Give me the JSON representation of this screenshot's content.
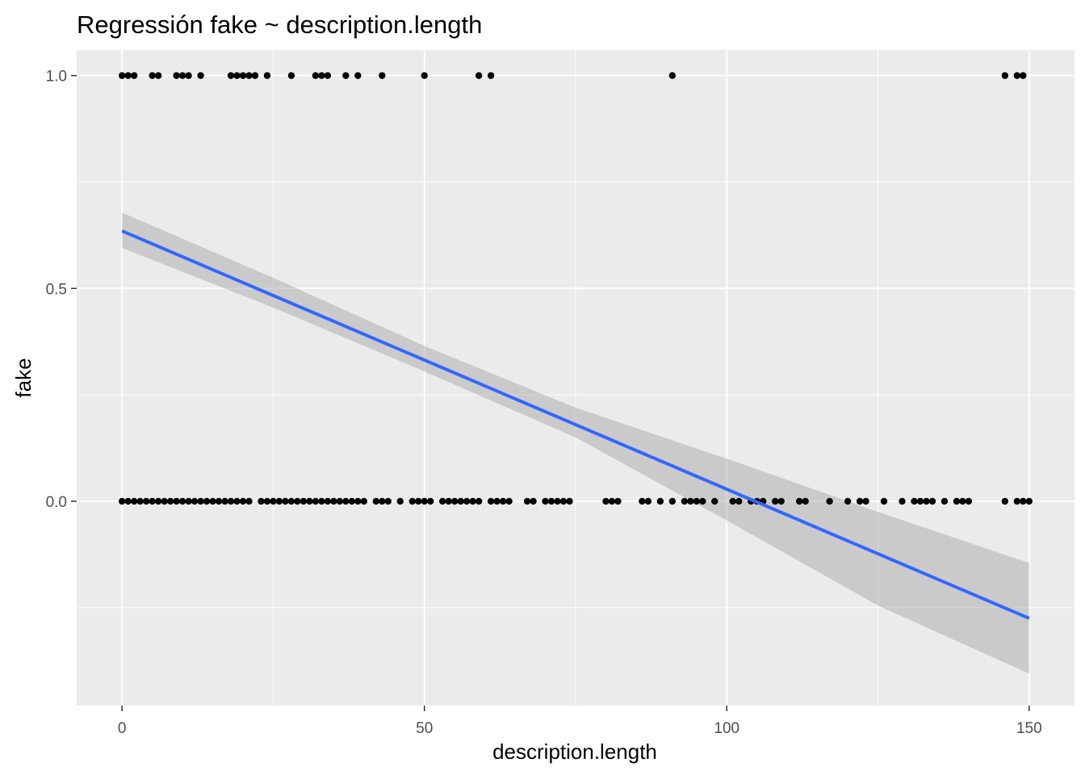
{
  "chart_data": {
    "type": "scatter",
    "title": "Regressión fake ~ description.length",
    "xlabel": "description.length",
    "ylabel": "fake",
    "xlim": [
      -7.5,
      157.5
    ],
    "ylim": [
      -0.48,
      1.06
    ],
    "x_ticks": [
      0,
      50,
      100,
      150
    ],
    "x_tick_labels": [
      "0",
      "50",
      "100",
      "150"
    ],
    "y_ticks": [
      0.0,
      0.5,
      1.0
    ],
    "y_tick_labels": [
      "0.0",
      "0.5",
      "1.0"
    ],
    "grid": true,
    "background_color": "#ebebeb",
    "point_color": "#000000",
    "line_color": "#3366ff",
    "band_color": "#999999",
    "points_y1": [
      0,
      1,
      2,
      5,
      6,
      9,
      10,
      11,
      13,
      18,
      19,
      20,
      21,
      22,
      24,
      28,
      32,
      33,
      34,
      37,
      39,
      43,
      50,
      59,
      61,
      91,
      146,
      148,
      149
    ],
    "points_y0": [
      0,
      1,
      2,
      3,
      4,
      5,
      6,
      7,
      8,
      9,
      10,
      11,
      12,
      13,
      14,
      15,
      16,
      17,
      18,
      19,
      20,
      21,
      23,
      24,
      25,
      26,
      27,
      28,
      29,
      30,
      31,
      32,
      33,
      34,
      35,
      36,
      37,
      38,
      39,
      40,
      42,
      43,
      44,
      46,
      48,
      49,
      50,
      51,
      53,
      54,
      55,
      56,
      57,
      58,
      59,
      61,
      62,
      63,
      64,
      67,
      68,
      70,
      71,
      72,
      73,
      74,
      80,
      81,
      82,
      86,
      87,
      89,
      91,
      93,
      94,
      95,
      96,
      98,
      101,
      102,
      104,
      105,
      106,
      108,
      109,
      112,
      113,
      117,
      120,
      122,
      123,
      126,
      129,
      131,
      132,
      133,
      134,
      136,
      138,
      139,
      140,
      146,
      148,
      149,
      150
    ],
    "fit_line": {
      "x": [
        0,
        150
      ],
      "y": [
        0.635,
        -0.275
      ]
    },
    "confidence_band": {
      "x": [
        0,
        25,
        50,
        75,
        100,
        125,
        150
      ],
      "lower": [
        0.595,
        0.455,
        0.305,
        0.15,
        -0.045,
        -0.245,
        -0.405
      ],
      "upper": [
        0.678,
        0.525,
        0.365,
        0.22,
        0.1,
        -0.025,
        -0.145
      ]
    }
  }
}
